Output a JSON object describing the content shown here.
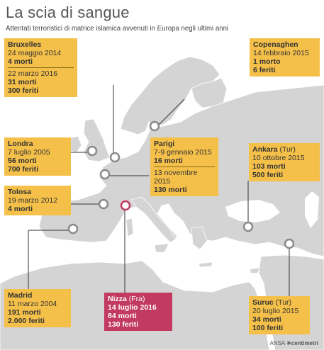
{
  "title": "La scia di sangue",
  "subtitle": "Attentati terroristici di matrice islamica avvenuti in Europa negli ultimi anni",
  "credit": {
    "ansa": "ANSA",
    "centimetri": "centimetri"
  },
  "colors": {
    "sea": "#ffffff",
    "land": "#d4d4d4",
    "box": "#f5c04a",
    "highlight": "#c23a5f",
    "pin": "#8a8a8a"
  },
  "attacks": {
    "bruxelles": {
      "city": "Bruxelles",
      "e1_date": "24 maggio 2014",
      "e1_dead": "4 morti",
      "e2_date": "22 marzo 2016",
      "e2_dead": "31 morti",
      "e2_injured": "300 feriti"
    },
    "copenaghen": {
      "city": "Copenaghen",
      "date": "14 febbraio 2015",
      "dead": "1 morto",
      "injured": "6 feriti"
    },
    "londra": {
      "city": "Londra",
      "date": "7 luglio 2005",
      "dead": "56 morti",
      "injured": "700 feriti"
    },
    "parigi": {
      "city": "Parigi",
      "e1_date": "7-9 gennaio 2015",
      "e1_dead": "16 morti",
      "e2_date": "13 novembre 2015",
      "e2_dead": "130 morti"
    },
    "ankara": {
      "city": "Ankara",
      "country": "(Tur)",
      "date": "10 ottobre 2015",
      "dead": "103 morti",
      "injured": "500 feriti"
    },
    "tolosa": {
      "city": "Tolosa",
      "date": "19 marzo 2012",
      "dead": "4 morti"
    },
    "madrid": {
      "city": "Madrid",
      "date": "11 marzo 2004",
      "dead": "191 morti",
      "injured": "2.000 feriti"
    },
    "nizza": {
      "city": "Nizza",
      "country": "(Fra)",
      "date": "14 luglio 2016",
      "dead": "84 morti",
      "injured": "130 feriti"
    },
    "suruc": {
      "city": "Suruc",
      "country": "(Tur)",
      "date": "20 luglio 2015",
      "dead": "34 morti",
      "injured": "100 feriti"
    }
  }
}
